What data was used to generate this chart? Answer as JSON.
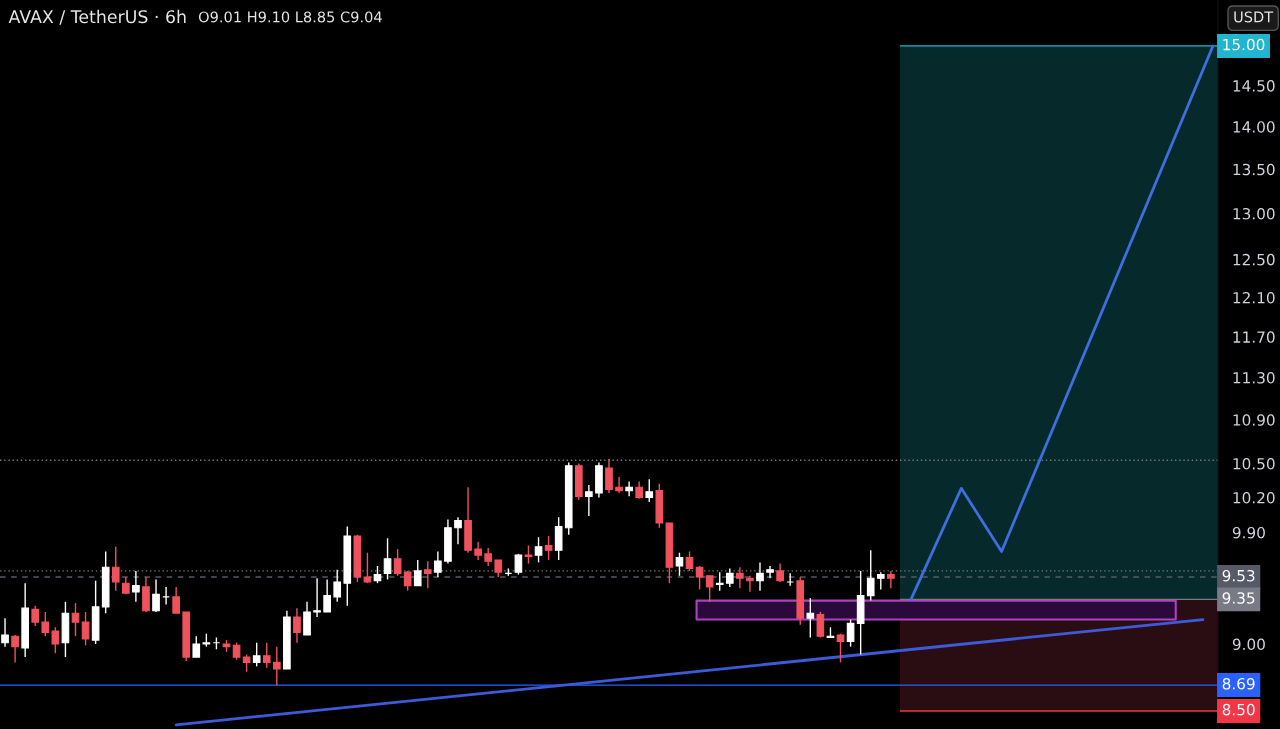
{
  "chart_data": {
    "type": "candlestick",
    "title": "AVAX / TetherUS · 6h",
    "subtitle": "O9.01 H9.10 L8.85 C9.04",
    "ylabel": "USDT",
    "categories": [
      null,
      null,
      null,
      null,
      null,
      null,
      null,
      null,
      null,
      null,
      null,
      null,
      null,
      null,
      null,
      null,
      null,
      null,
      null,
      null,
      null,
      null,
      null,
      null,
      null,
      null,
      null,
      null,
      null,
      null,
      null,
      null,
      null,
      null,
      null,
      null,
      null,
      null,
      null,
      null,
      null,
      null,
      null,
      null,
      null,
      null,
      null,
      null,
      null,
      null,
      null,
      null,
      null,
      null,
      null,
      null,
      null,
      null,
      null,
      null,
      null,
      null,
      null,
      null,
      null,
      null,
      null,
      null,
      null,
      null,
      null,
      null,
      null,
      null,
      null,
      null,
      null,
      null,
      null,
      null,
      null,
      null,
      null,
      null,
      null,
      null,
      null,
      null,
      null,
      null,
      null,
      null,
      null,
      null,
      null,
      null,
      null,
      null,
      null,
      null,
      null,
      null,
      null,
      null,
      null,
      null,
      null,
      null,
      null,
      null,
      null,
      null,
      null,
      null,
      null,
      null,
      null,
      null,
      null,
      null,
      null
    ],
    "ohlc": [
      [
        9.01,
        9.2,
        8.98,
        9.07
      ],
      [
        9.06,
        9.07,
        8.86,
        8.98
      ],
      [
        8.97,
        9.48,
        8.9,
        9.28
      ],
      [
        9.27,
        9.3,
        9.14,
        9.17
      ],
      [
        9.17,
        9.25,
        9.06,
        9.09
      ],
      [
        9.1,
        9.13,
        8.93,
        9.0
      ],
      [
        9.01,
        9.33,
        8.9,
        9.24
      ],
      [
        9.24,
        9.32,
        9.06,
        9.17
      ],
      [
        9.17,
        9.25,
        8.99,
        9.04
      ],
      [
        9.03,
        9.5,
        9.0,
        9.29
      ],
      [
        9.29,
        9.74,
        9.24,
        9.61
      ],
      [
        9.61,
        9.78,
        9.42,
        9.49
      ],
      [
        9.48,
        9.53,
        9.39,
        9.4
      ],
      [
        9.41,
        9.58,
        9.33,
        9.46
      ],
      [
        9.45,
        9.53,
        9.25,
        9.26
      ],
      [
        9.26,
        9.51,
        9.25,
        9.39
      ],
      [
        9.37,
        9.45,
        9.31,
        9.37
      ],
      [
        9.37,
        9.45,
        9.24,
        9.24
      ],
      [
        9.25,
        9.25,
        8.87,
        8.9
      ],
      [
        8.9,
        9.06,
        8.9,
        9.0
      ],
      [
        9.0,
        9.08,
        8.98,
        9.01
      ],
      [
        9.01,
        9.05,
        8.96,
        9.01
      ],
      [
        9.0,
        9.03,
        8.94,
        8.98
      ],
      [
        8.99,
        9.01,
        8.88,
        8.9
      ],
      [
        8.9,
        8.92,
        8.79,
        8.86
      ],
      [
        8.86,
        9.01,
        8.83,
        8.91
      ],
      [
        8.91,
        9.01,
        8.82,
        8.86
      ],
      [
        8.86,
        8.98,
        8.69,
        8.81
      ],
      [
        8.81,
        9.26,
        8.81,
        9.21
      ],
      [
        9.21,
        9.28,
        9.01,
        9.09
      ],
      [
        9.07,
        9.33,
        9.07,
        9.25
      ],
      [
        9.25,
        9.52,
        9.21,
        9.26
      ],
      [
        9.25,
        9.51,
        9.25,
        9.38
      ],
      [
        9.37,
        9.59,
        9.33,
        9.49
      ],
      [
        9.48,
        9.95,
        9.3,
        9.87
      ],
      [
        9.87,
        9.88,
        9.49,
        9.53
      ],
      [
        9.53,
        9.73,
        9.48,
        9.49
      ],
      [
        9.5,
        9.62,
        9.48,
        9.55
      ],
      [
        9.56,
        9.85,
        9.51,
        9.68
      ],
      [
        9.68,
        9.76,
        9.54,
        9.56
      ],
      [
        9.57,
        9.58,
        9.42,
        9.46
      ],
      [
        9.46,
        9.67,
        9.46,
        9.58
      ],
      [
        9.59,
        9.66,
        9.44,
        9.56
      ],
      [
        9.57,
        9.74,
        9.53,
        9.66
      ],
      [
        9.66,
        10.01,
        9.64,
        9.94
      ],
      [
        9.94,
        10.03,
        9.8,
        10.0
      ],
      [
        10.0,
        10.29,
        9.73,
        9.75
      ],
      [
        9.76,
        9.82,
        9.67,
        9.71
      ],
      [
        9.72,
        9.77,
        9.62,
        9.66
      ],
      [
        9.67,
        9.67,
        9.53,
        9.57
      ],
      [
        9.56,
        9.6,
        9.54,
        9.56
      ],
      [
        9.57,
        9.72,
        9.55,
        9.71
      ],
      [
        9.71,
        9.79,
        9.64,
        9.7
      ],
      [
        9.71,
        9.86,
        9.65,
        9.78
      ],
      [
        9.79,
        9.87,
        9.67,
        9.75
      ],
      [
        9.75,
        10.03,
        9.67,
        9.95
      ],
      [
        9.94,
        10.51,
        9.88,
        10.48
      ],
      [
        10.48,
        10.5,
        10.18,
        10.21
      ],
      [
        10.21,
        10.31,
        10.04,
        10.25
      ],
      [
        10.24,
        10.51,
        10.2,
        10.48
      ],
      [
        10.46,
        10.54,
        10.24,
        10.27
      ],
      [
        10.29,
        10.38,
        10.24,
        10.26
      ],
      [
        10.26,
        10.34,
        10.21,
        10.29
      ],
      [
        10.29,
        10.34,
        10.19,
        10.2
      ],
      [
        10.2,
        10.36,
        10.16,
        10.25
      ],
      [
        10.26,
        10.32,
        9.94,
        9.98
      ],
      [
        9.98,
        9.98,
        9.48,
        9.61
      ],
      [
        9.62,
        9.73,
        9.54,
        9.69
      ],
      [
        9.69,
        9.74,
        9.58,
        9.6
      ],
      [
        9.61,
        9.62,
        9.43,
        9.53
      ],
      [
        9.54,
        9.54,
        9.33,
        9.45
      ],
      [
        9.47,
        9.57,
        9.42,
        9.48
      ],
      [
        9.48,
        9.6,
        9.45,
        9.56
      ],
      [
        9.56,
        9.61,
        9.44,
        9.52
      ],
      [
        9.52,
        9.54,
        9.41,
        9.5
      ],
      [
        9.5,
        9.65,
        9.42,
        9.56
      ],
      [
        9.57,
        9.62,
        9.52,
        9.59
      ],
      [
        9.58,
        9.64,
        9.49,
        9.5
      ],
      [
        9.49,
        9.56,
        9.46,
        9.49
      ],
      [
        9.5,
        9.53,
        9.15,
        9.2
      ],
      [
        9.2,
        9.36,
        9.05,
        9.24
      ],
      [
        9.23,
        9.25,
        9.05,
        9.06
      ],
      [
        9.05,
        9.13,
        9.05,
        9.06
      ],
      [
        9.07,
        9.08,
        8.86,
        9.02
      ],
      [
        9.02,
        9.19,
        8.98,
        9.16
      ],
      [
        9.16,
        9.58,
        8.92,
        9.38
      ],
      [
        9.38,
        9.75,
        9.34,
        9.52
      ],
      [
        9.52,
        9.57,
        9.43,
        9.55
      ],
      [
        9.55,
        9.58,
        9.44,
        9.52
      ],
      null,
      null,
      null,
      null,
      null,
      null,
      null,
      null,
      null,
      null,
      null,
      null,
      null,
      null,
      null,
      null,
      null,
      null,
      null,
      null,
      null,
      null,
      null,
      null,
      null,
      null,
      null,
      null,
      null,
      null,
      null,
      null
    ],
    "colors": [
      "#ffffff",
      "#f0525d",
      "#ffffff",
      "#f0525d",
      "#f0525d",
      "#f0525d",
      "#ffffff",
      "#f0525d",
      "#f0525d",
      "#ffffff",
      "#ffffff",
      "#f0525d",
      "#f0525d",
      "#ffffff",
      "#f0525d",
      "#ffffff",
      "#ffffff",
      "#f0525d",
      "#f0525d",
      "#ffffff",
      "#ffffff",
      "#ffffff",
      "#f0525d",
      "#f0525d",
      "#f0525d",
      "#ffffff",
      "#f0525d",
      "#f0525d",
      "#ffffff",
      "#f0525d",
      "#ffffff",
      "#ffffff",
      "#ffffff",
      "#ffffff",
      "#ffffff",
      "#f0525d",
      "#f0525d",
      "#ffffff",
      "#ffffff",
      "#f0525d",
      "#f0525d",
      "#ffffff",
      "#f0525d",
      "#ffffff",
      "#ffffff",
      "#ffffff",
      "#f0525d",
      "#f0525d",
      "#f0525d",
      "#f0525d",
      "#ffffff",
      "#ffffff",
      "#f0525d",
      "#ffffff",
      "#f0525d",
      "#ffffff",
      "#ffffff",
      "#f0525d",
      "#ffffff",
      "#ffffff",
      "#f0525d",
      "#f0525d",
      "#ffffff",
      "#f0525d",
      "#ffffff",
      "#f0525d",
      "#f0525d",
      "#ffffff",
      "#f0525d",
      "#f0525d",
      "#f0525d",
      "#ffffff",
      "#ffffff",
      "#f0525d",
      "#f0525d",
      "#ffffff",
      "#ffffff",
      "#f0525d",
      "#ffffff",
      "#f0525d",
      "#ffffff",
      "#f0525d",
      "#ffffff",
      "#f0525d",
      "#ffffff",
      "#ffffff",
      "#ffffff",
      "#ffffff",
      "#f0525d",
      null,
      null,
      null,
      null,
      null,
      null,
      null,
      null,
      null,
      null,
      null,
      null,
      null,
      null,
      null,
      null,
      null,
      null,
      null,
      null,
      null,
      null,
      null,
      null,
      null,
      null,
      null,
      null,
      null,
      null,
      null,
      null
    ],
    "series": [
      {
        "type": "line",
        "color": "#3d5bd9",
        "values": [
          null,
          null,
          null,
          null,
          null,
          null,
          null,
          null,
          null,
          null,
          null,
          null,
          null,
          null,
          null,
          null,
          null,
          8.4,
          null,
          null,
          null,
          null,
          null,
          null,
          null,
          null,
          null,
          null,
          null,
          null,
          null,
          null,
          null,
          null,
          null,
          null,
          null,
          null,
          null,
          null,
          null,
          null,
          null,
          null,
          null,
          null,
          null,
          null,
          null,
          null,
          null,
          null,
          null,
          null,
          null,
          null,
          null,
          null,
          null,
          null,
          null,
          null,
          null,
          null,
          null,
          null,
          null,
          null,
          null,
          null,
          null,
          null,
          null,
          null,
          null,
          null,
          null,
          null,
          null,
          null,
          null,
          null,
          null,
          null,
          null,
          null,
          null,
          null,
          null,
          null,
          null,
          null,
          null,
          null,
          null,
          null,
          null,
          null,
          null,
          null,
          null,
          null,
          null,
          null,
          null,
          null,
          null,
          null,
          null,
          null,
          null,
          null,
          null,
          null,
          null,
          null,
          null,
          null,
          null,
          9.19,
          null
        ]
      },
      {
        "type": "line",
        "color": "#3d6fe0",
        "values": [
          null,
          null,
          null,
          null,
          null,
          null,
          null,
          null,
          null,
          null,
          null,
          null,
          null,
          null,
          null,
          null,
          null,
          null,
          null,
          null,
          null,
          null,
          null,
          null,
          null,
          null,
          null,
          null,
          null,
          null,
          null,
          null,
          null,
          null,
          null,
          null,
          null,
          null,
          null,
          null,
          null,
          null,
          null,
          null,
          null,
          null,
          null,
          null,
          null,
          null,
          null,
          null,
          null,
          null,
          null,
          null,
          null,
          null,
          null,
          null,
          null,
          null,
          null,
          null,
          null,
          null,
          null,
          null,
          null,
          null,
          null,
          null,
          null,
          null,
          null,
          null,
          null,
          null,
          null,
          null,
          null,
          null,
          null,
          null,
          null,
          null,
          null,
          null,
          null,
          null,
          9.35,
          null,
          null,
          null,
          null,
          10.28,
          null,
          null,
          null,
          9.74,
          null,
          null,
          null,
          null,
          null,
          null,
          null,
          null,
          null,
          null,
          null,
          null,
          null,
          null,
          null,
          null,
          null,
          null,
          null,
          null,
          15.0
        ]
      }
    ],
    "bands": [
      {
        "axis": "y",
        "from": 9.35,
        "to": 15.0,
        "color": "#062a2c"
      },
      {
        "axis": "y",
        "from": 8.5,
        "to": 9.35,
        "color": "#2a0d12"
      },
      {
        "axis": "y",
        "from": 9.19,
        "to": 9.34,
        "color": "#b040c0"
      }
    ],
    "ref_lines": [
      {
        "axis": "y",
        "value": 10.53,
        "line_style": "dotted",
        "color": "#777777"
      },
      {
        "axis": "y",
        "value": 9.58,
        "line_style": "dotted",
        "color": "#777777"
      },
      {
        "axis": "y",
        "value": 9.53,
        "line_style": "dashed",
        "color": "#555a66",
        "label": "9.53"
      },
      {
        "axis": "y",
        "value": 8.69,
        "line_style": "solid",
        "color": "#2962ff",
        "label": "8.69"
      },
      {
        "axis": "y",
        "value": 15.0,
        "color": "#22b5d0",
        "label": "15.00"
      },
      {
        "axis": "y",
        "value": 9.35,
        "color": "#787b86",
        "label": "9.35"
      },
      {
        "axis": "y",
        "value": 8.5,
        "color": "#f23645",
        "label": "8.50"
      }
    ],
    "log": "y",
    "ylim": [
      8.37,
      15.6
    ],
    "yticks": [
      {
        "value": 14.5,
        "label": "14.50"
      },
      {
        "value": 14,
        "label": "14.00"
      },
      {
        "value": 13.5,
        "label": "13.50"
      },
      {
        "value": 13,
        "label": "13.00"
      },
      {
        "value": 12.5,
        "label": "12.50"
      },
      {
        "value": 12.1,
        "label": "12.10"
      },
      {
        "value": 11.7,
        "label": "11.70"
      },
      {
        "value": 11.3,
        "label": "11.30"
      },
      {
        "value": 10.9,
        "label": "10.90"
      },
      {
        "value": 10.5,
        "label": "10.50"
      },
      {
        "value": 10.2,
        "label": "10.20"
      },
      {
        "value": 9.9,
        "label": "9.90"
      },
      {
        "value": 9,
        "label": "9.00"
      }
    ],
    "tick_labels": "y",
    "legend": false
  }
}
